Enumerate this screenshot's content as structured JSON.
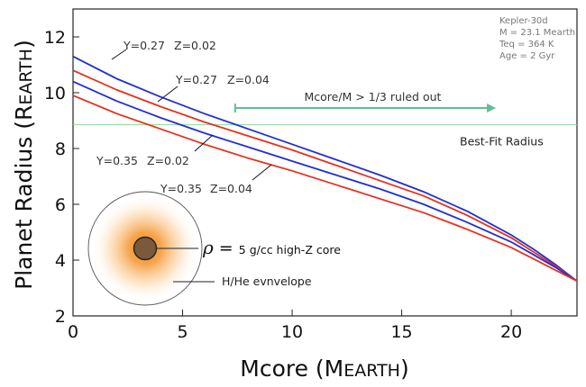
{
  "chart_data": {
    "type": "line",
    "xlabel_main": "Mcore (M",
    "xlabel_sub": "EARTH",
    "xlabel_end": ")",
    "ylabel_main": "Planet Radius (R",
    "ylabel_sub": "EARTH",
    "ylabel_end": ")",
    "xlim": [
      0,
      23
    ],
    "ylim": [
      2,
      13
    ],
    "xticks": [
      0,
      5,
      10,
      15,
      20
    ],
    "yticks": [
      2,
      4,
      6,
      8,
      10,
      12
    ],
    "grid": false,
    "series": [
      {
        "color": "#1f2fd6",
        "x": [
          0,
          2,
          4,
          6,
          8,
          10,
          12,
          14,
          16,
          18,
          20,
          21,
          22,
          23
        ],
        "y": [
          11.3,
          10.5,
          9.85,
          9.25,
          8.7,
          8.15,
          7.6,
          7.05,
          6.45,
          5.75,
          4.9,
          4.4,
          3.85,
          3.25
        ]
      },
      {
        "color": "#e8301e",
        "x": [
          0,
          2,
          4,
          6,
          8,
          10,
          12,
          14,
          16,
          18,
          20,
          21,
          22,
          23
        ],
        "y": [
          10.8,
          10.1,
          9.5,
          8.95,
          8.45,
          7.95,
          7.4,
          6.85,
          6.3,
          5.6,
          4.8,
          4.3,
          3.8,
          3.25
        ]
      },
      {
        "color": "#1f2fd6",
        "x": [
          0,
          2,
          4,
          6,
          8,
          10,
          12,
          14,
          16,
          18,
          20,
          21,
          22,
          23
        ],
        "y": [
          10.4,
          9.7,
          9.1,
          8.55,
          8.05,
          7.55,
          7.05,
          6.55,
          6.0,
          5.35,
          4.65,
          4.2,
          3.75,
          3.25
        ]
      },
      {
        "color": "#e8301e",
        "x": [
          0,
          2,
          4,
          6,
          8,
          10,
          12,
          14,
          16,
          18,
          20,
          21,
          22,
          23
        ],
        "y": [
          9.9,
          9.25,
          8.7,
          8.15,
          7.65,
          7.2,
          6.7,
          6.2,
          5.7,
          5.1,
          4.45,
          4.05,
          3.65,
          3.25
        ]
      }
    ],
    "curve_labels": [
      {
        "Y": "Y=0.27",
        "Z": "Z=0.02"
      },
      {
        "Y": "Y=0.27",
        "Z": "Z=0.04"
      },
      {
        "Y": "Y=0.35",
        "Z": "Z=0.02"
      },
      {
        "Y": "Y=0.35",
        "Z": "Z=0.04"
      }
    ],
    "best_fit": {
      "y": 8.85,
      "label": "Best-Fit Radius",
      "color": "#8fd49a"
    },
    "ruled_out": {
      "x_start": 7.4,
      "x_end": 19.3,
      "y": 9.45,
      "label": "Mcore/M > 1/3 ruled out",
      "color": "#5fbf93"
    },
    "info_box": [
      "Kepler-30d",
      "M = 23.1 Mearth",
      "Teq = 364 K",
      "Age = 2 Gyr"
    ],
    "schematic": {
      "rho_symbol": "ρ",
      "rho_eq": " = ",
      "core_label": "5 g/cc  high-Z core",
      "envelope_label": "H/He evnvelope"
    }
  }
}
